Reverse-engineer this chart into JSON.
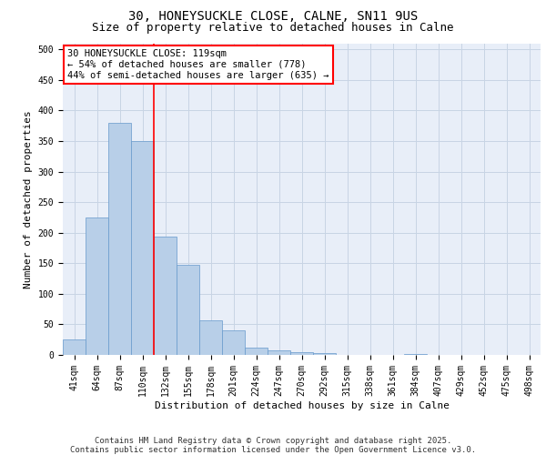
{
  "title_line1": "30, HONEYSUCKLE CLOSE, CALNE, SN11 9US",
  "title_line2": "Size of property relative to detached houses in Calne",
  "xlabel": "Distribution of detached houses by size in Calne",
  "ylabel": "Number of detached properties",
  "categories": [
    "41sqm",
    "64sqm",
    "87sqm",
    "110sqm",
    "132sqm",
    "155sqm",
    "178sqm",
    "201sqm",
    "224sqm",
    "247sqm",
    "270sqm",
    "292sqm",
    "315sqm",
    "338sqm",
    "361sqm",
    "384sqm",
    "407sqm",
    "429sqm",
    "452sqm",
    "475sqm",
    "498sqm"
  ],
  "values": [
    25,
    225,
    380,
    350,
    193,
    147,
    57,
    40,
    12,
    7,
    4,
    3,
    0,
    0,
    0,
    1,
    0,
    0,
    0,
    0,
    0
  ],
  "bar_color": "#b8cfe8",
  "bar_edge_color": "#6699cc",
  "grid_color": "#c8d4e4",
  "bg_color": "#e8eef8",
  "vline_x": 3.5,
  "vline_color": "red",
  "annotation_text": "30 HONEYSUCKLE CLOSE: 119sqm\n← 54% of detached houses are smaller (778)\n44% of semi-detached houses are larger (635) →",
  "annotation_box_color": "white",
  "annotation_box_edge": "red",
  "ylim": [
    0,
    510
  ],
  "yticks": [
    0,
    50,
    100,
    150,
    200,
    250,
    300,
    350,
    400,
    450,
    500
  ],
  "footer": "Contains HM Land Registry data © Crown copyright and database right 2025.\nContains public sector information licensed under the Open Government Licence v3.0.",
  "title_fontsize": 10,
  "subtitle_fontsize": 9,
  "axis_label_fontsize": 8,
  "tick_fontsize": 7,
  "annotation_fontsize": 7.5,
  "footer_fontsize": 6.5
}
